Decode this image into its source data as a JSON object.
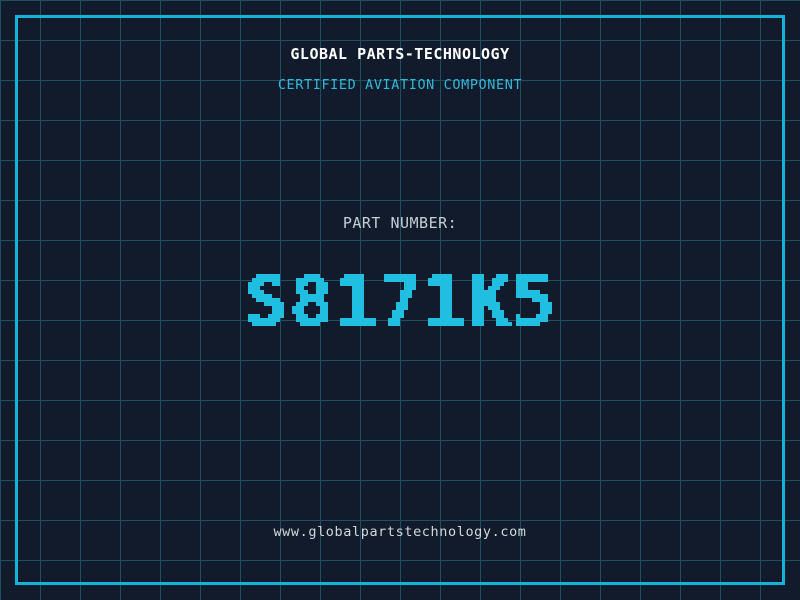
{
  "page": {
    "title": "GLOBAL PARTS-TECHNOLOGY",
    "subtitle": "CERTIFIED AVIATION COMPONENT",
    "part_label": "PART NUMBER:",
    "part_number": "S8171K5",
    "website": "www.globalpartstechnology.com"
  },
  "colors": {
    "bg": "#111b2b",
    "grid": "#1d5065",
    "frame": "#14b4da",
    "title": "#ffffff",
    "subtitle": "#32b8d9",
    "label": "#c6ced6",
    "number": "#20bfe2",
    "url": "#d2d8dc"
  }
}
